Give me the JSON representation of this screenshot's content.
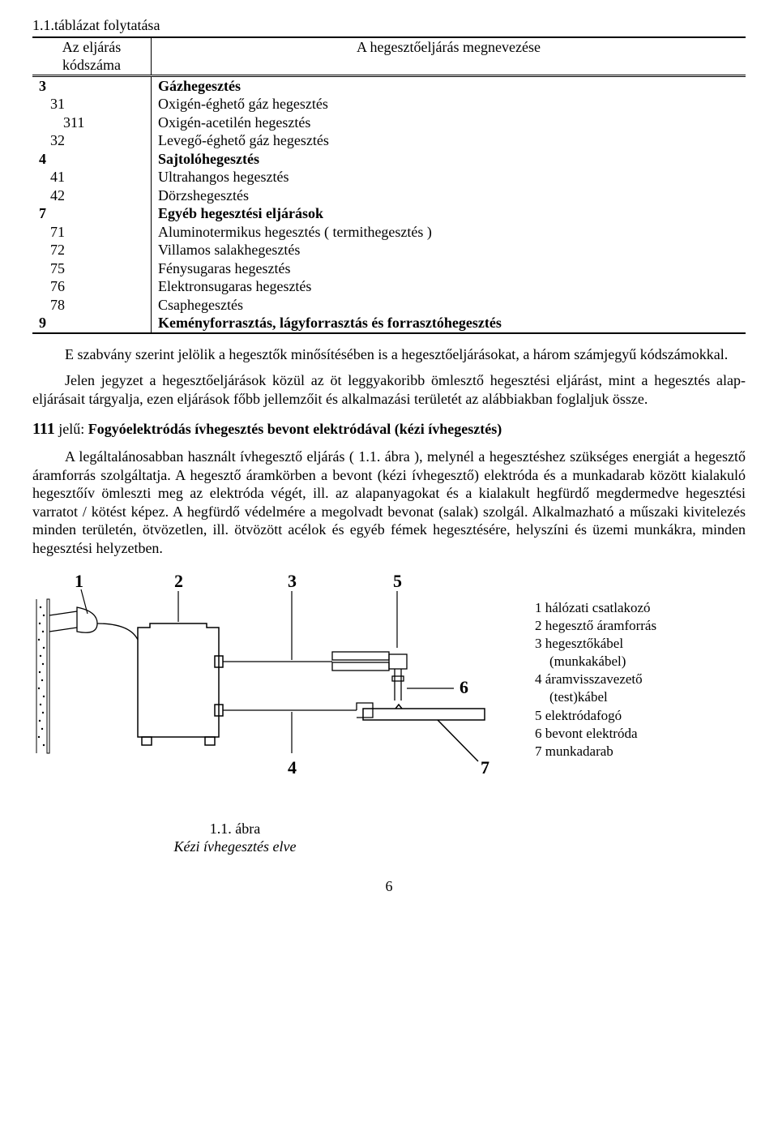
{
  "table": {
    "caption": "1.1.táblázat folytatása",
    "header_left_line1": "Az eljárás",
    "header_left_line2": "kódszáma",
    "header_right": "A hegesztőeljárás  megnevezése",
    "rows": [
      {
        "code": "3",
        "indent": 0,
        "name": "Gázhegesztés",
        "bold": true
      },
      {
        "code": "31",
        "indent": 1,
        "name": "Oxigén-éghető gáz hegesztés",
        "bold": false
      },
      {
        "code": "311",
        "indent": 2,
        "name": "Oxigén-acetilén hegesztés",
        "bold": false
      },
      {
        "code": "32",
        "indent": 1,
        "name": "Levegő-éghető gáz hegesztés",
        "bold": false
      },
      {
        "code": "4",
        "indent": 0,
        "name": "Sajtolóhegesztés",
        "bold": true
      },
      {
        "code": "41",
        "indent": 1,
        "name": "Ultrahangos hegesztés",
        "bold": false
      },
      {
        "code": "42",
        "indent": 1,
        "name": "Dörzshegesztés",
        "bold": false
      },
      {
        "code": "7",
        "indent": 0,
        "name": "Egyéb hegesztési eljárások",
        "bold": true
      },
      {
        "code": "71",
        "indent": 1,
        "name": "Aluminotermikus hegesztés ( termithegesztés )",
        "bold": false
      },
      {
        "code": "72",
        "indent": 1,
        "name": "Villamos salakhegesztés",
        "bold": false
      },
      {
        "code": "75",
        "indent": 1,
        "name": "Fénysugaras hegesztés",
        "bold": false
      },
      {
        "code": "76",
        "indent": 1,
        "name": "Elektronsugaras hegesztés",
        "bold": false
      },
      {
        "code": "78",
        "indent": 1,
        "name": "Csaphegesztés",
        "bold": false
      },
      {
        "code": "9",
        "indent": 0,
        "name": "Keményforrasztás, lágyforrasztás és forrasztóhegesztés",
        "bold": true
      }
    ]
  },
  "para1": "E szabvány szerint jelölik a hegesztők minősítésében is a hegesztőeljárásokat, a három számjegyű kódszámokkal.",
  "para2": "Jelen jegyzet a hegesztőeljárások közül az öt leggyakoribb ömlesztő hegesztési eljárást, mint a hegesztés alap-eljárásait tárgyalja, ezen eljárások főbb jellemzőit és alkalmazási területét az alábbiakban foglaljuk össze.",
  "section": {
    "number": "111",
    "number_suffix": " jelű: ",
    "title": "Fogyóelektródás ívhegesztés bevont elektródával (kézi ívhegesztés)",
    "body": "A legáltalánosabban használt ívhegesztő eljárás ( 1.1. ábra ), melynél a hegesztéshez szükséges energiát a hegesztő áramforrás szolgáltatja. A hegesztő áramkörben a bevont (kézi ívhegesztő) elektróda és a munkadarab között kialakuló hegesztőív ömleszti meg az elektróda végét, ill. az alapanyagokat és a kialakult hegfürdő megdermedve hegesztési varratot / kötést képez. A hegfürdő védelmére a megolvadt bevonat (salak) szolgál. Alkalmazható a műszaki kivitelezés minden területén, ötvözetlen, ill. ötvözött acélok és egyéb fémek hegesztésére, helyszíni és üzemi munkákra, minden hegesztési helyzetben."
  },
  "figure": {
    "labels": {
      "n1": "1",
      "n2": "2",
      "n3": "3",
      "n4": "4",
      "n5": "5",
      "n6": "6",
      "n7": "7"
    },
    "legend": [
      "1 hálózati csatlakozó",
      "2 hegesztő áramforrás",
      "3 hegesztőkábel",
      "   (munkakábel)",
      "4 áramvisszavezető",
      "   (test)kábel",
      "5 elektródafogó",
      "6 bevont elektróda",
      "7 munkadarab"
    ],
    "caption_line1": "1.1. ábra",
    "caption_line2": "Kézi ívhegesztés elve",
    "stroke_color": "#000000",
    "stroke_width": 1.3,
    "font_size_labels": 22
  },
  "page_number": "6"
}
